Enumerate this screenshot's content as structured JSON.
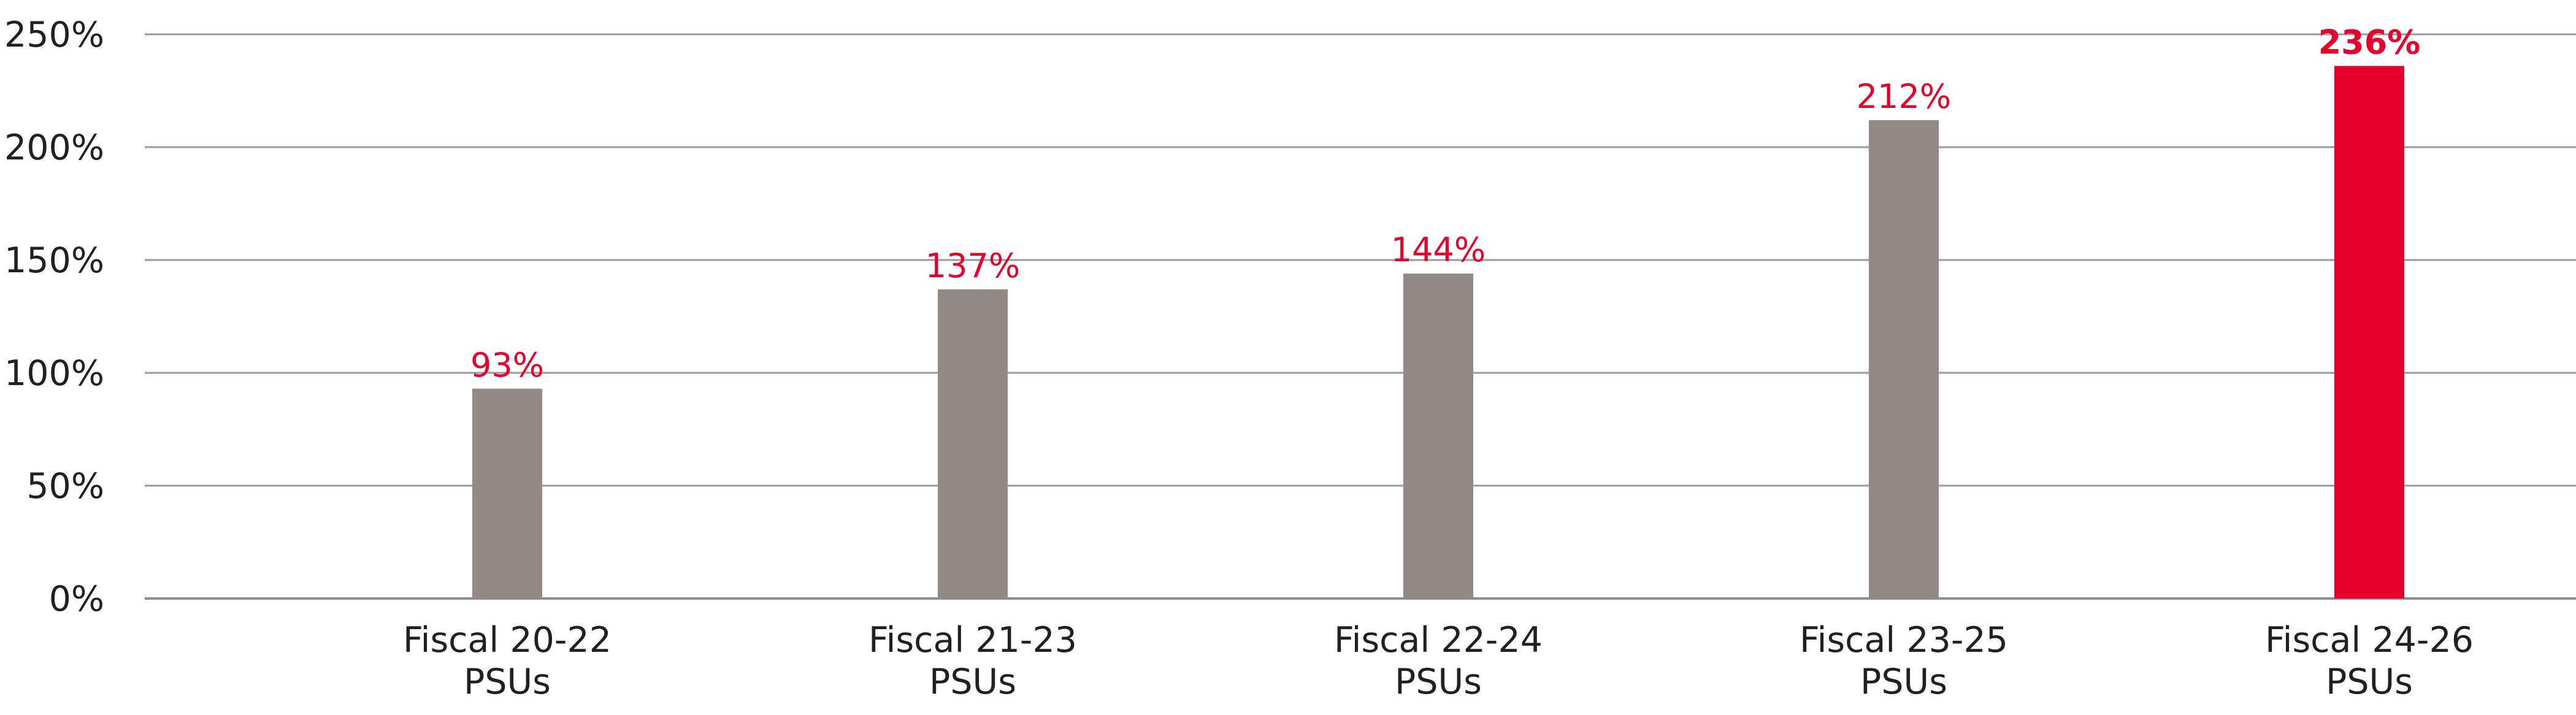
{
  "chart_data": {
    "type": "bar",
    "title": "",
    "xlabel": "",
    "ylabel": "",
    "categories": [
      [
        "Fiscal 20-22",
        "PSUs"
      ],
      [
        "Fiscal 21-23",
        "PSUs"
      ],
      [
        "Fiscal 22-24",
        "PSUs"
      ],
      [
        "Fiscal 23-25",
        "PSUs"
      ],
      [
        "Fiscal 24-26",
        "PSUs"
      ]
    ],
    "values": [
      93,
      137,
      144,
      212,
      236
    ],
    "data_labels": [
      "93%",
      "137%",
      "144%",
      "212%",
      "236%"
    ],
    "highlight_index": 4,
    "ylim": [
      0,
      250
    ],
    "yticks": [
      0,
      50,
      100,
      150,
      200,
      250
    ],
    "ytick_labels": [
      "0%",
      "50%",
      "100%",
      "150%",
      "200%",
      "250%"
    ],
    "grid": true,
    "colors": {
      "bar": "#948a85",
      "highlight_bar": "#e4002b",
      "data_label": "#e4002b",
      "grid": "#9a9a9a"
    }
  }
}
